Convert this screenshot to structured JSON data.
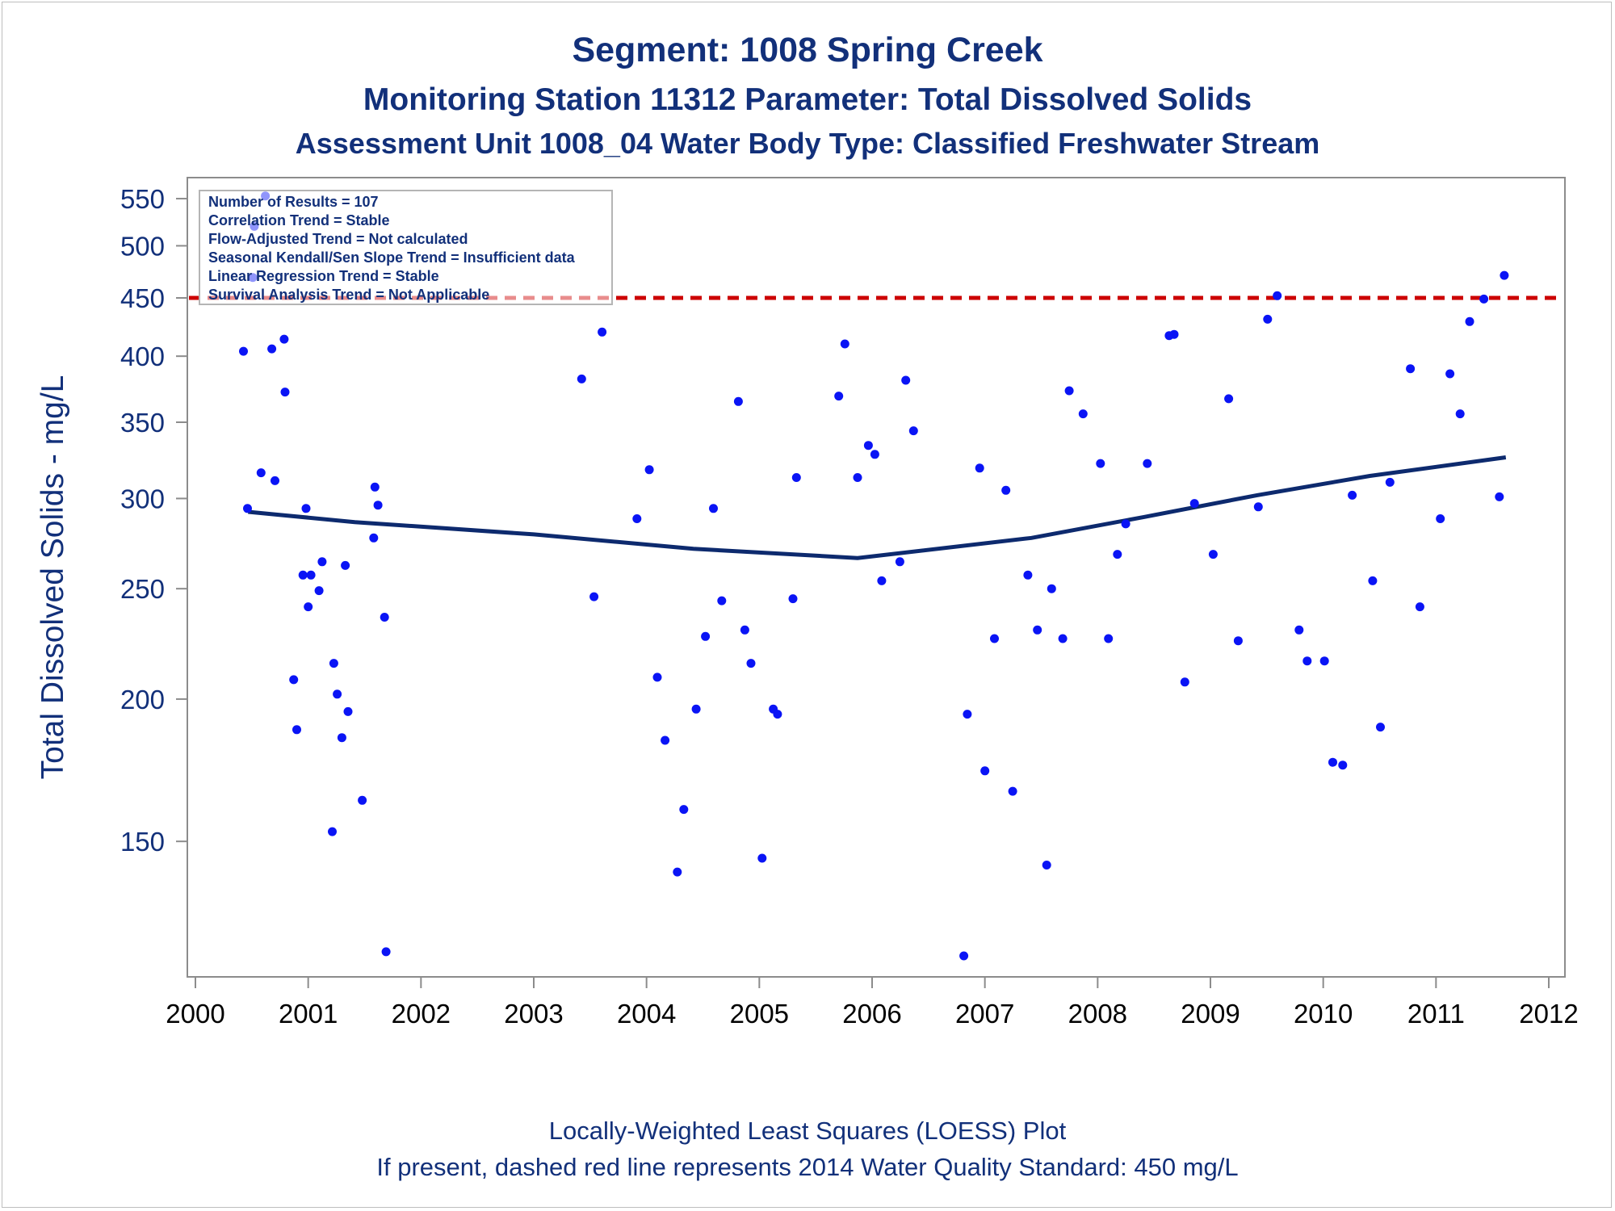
{
  "titles": {
    "line1": "Segment: 1008  Spring Creek",
    "line2": "Monitoring Station 11312 Parameter: Total Dissolved Solids",
    "line3": "Assessment Unit 1008_04   Water Body Type: Classified Freshwater Stream"
  },
  "footnotes": {
    "line1": "Locally-Weighted Least Squares (LOESS) Plot",
    "line2": "If present, dashed red line represents 2014 Water Quality Standard: 450   mg/L"
  },
  "colors": {
    "points": "#0a14f5",
    "loess": "#0d2a6e",
    "standard": "#cc0000",
    "text": "#12307a"
  },
  "chart_data": {
    "type": "scatter",
    "ylabel": "Total Dissolved Solids - mg/L",
    "xlabel": "",
    "y_scale": "log",
    "xlim": [
      "2000-01-01",
      "2012-01-01"
    ],
    "ylim": [
      115,
      560
    ],
    "xticks": [
      "2000",
      "2001",
      "2002",
      "2003",
      "2004",
      "2005",
      "2006",
      "2007",
      "2008",
      "2009",
      "2010",
      "2011",
      "2012"
    ],
    "yticks": [
      150,
      200,
      250,
      300,
      350,
      400,
      450,
      500,
      550
    ],
    "legend": {
      "placement": "top-left",
      "lines": [
        "Number of Results = 107",
        "Correlation Trend = Stable",
        "Flow-Adjusted Trend = Not calculated",
        "Seasonal Kendall/Sen Slope Trend = Insufficient data",
        "Linear Regression Trend = Stable",
        "Survival Analysis Trend = Not Applicable"
      ]
    },
    "standard_line": {
      "value": 450
    },
    "loess": {
      "x": [
        "2000-06-20",
        "2001-06-01",
        "2003-01-01",
        "2004-06-01",
        "2005-11-15",
        "2007-06-01",
        "2008-06-01",
        "2009-06-01",
        "2010-06-01",
        "2011-08-15"
      ],
      "y": [
        292,
        286,
        279,
        271,
        266,
        277,
        289,
        302,
        314,
        326
      ]
    },
    "points": [
      {
        "x": "2000-06-05",
        "y": 404
      },
      {
        "x": "2000-06-18",
        "y": 294
      },
      {
        "x": "2000-07-10",
        "y": 520
      },
      {
        "x": "2000-07-05",
        "y": 469
      },
      {
        "x": "2000-08-01",
        "y": 316
      },
      {
        "x": "2000-08-15",
        "y": 553
      },
      {
        "x": "2000-09-05",
        "y": 406
      },
      {
        "x": "2000-09-15",
        "y": 311
      },
      {
        "x": "2000-10-15",
        "y": 414
      },
      {
        "x": "2000-10-18",
        "y": 372
      },
      {
        "x": "2000-11-15",
        "y": 208
      },
      {
        "x": "2000-11-25",
        "y": 188
      },
      {
        "x": "2000-12-15",
        "y": 257
      },
      {
        "x": "2000-12-25",
        "y": 294
      },
      {
        "x": "2001-01-01",
        "y": 241
      },
      {
        "x": "2001-01-10",
        "y": 257
      },
      {
        "x": "2001-02-05",
        "y": 249
      },
      {
        "x": "2001-02-15",
        "y": 264
      },
      {
        "x": "2001-03-20",
        "y": 153
      },
      {
        "x": "2001-03-25",
        "y": 215
      },
      {
        "x": "2001-04-05",
        "y": 202
      },
      {
        "x": "2001-04-20",
        "y": 185
      },
      {
        "x": "2001-05-01",
        "y": 262
      },
      {
        "x": "2001-05-10",
        "y": 195
      },
      {
        "x": "2001-06-25",
        "y": 163
      },
      {
        "x": "2001-08-01",
        "y": 277
      },
      {
        "x": "2001-08-05",
        "y": 307
      },
      {
        "x": "2001-08-15",
        "y": 296
      },
      {
        "x": "2001-09-05",
        "y": 236
      },
      {
        "x": "2001-09-10",
        "y": 120
      },
      {
        "x": "2003-06-05",
        "y": 382
      },
      {
        "x": "2003-07-15",
        "y": 246
      },
      {
        "x": "2003-08-10",
        "y": 420
      },
      {
        "x": "2003-12-01",
        "y": 288
      },
      {
        "x": "2004-01-10",
        "y": 318
      },
      {
        "x": "2004-02-05",
        "y": 209
      },
      {
        "x": "2004-03-01",
        "y": 184
      },
      {
        "x": "2004-04-10",
        "y": 141
      },
      {
        "x": "2004-05-01",
        "y": 160
      },
      {
        "x": "2004-06-10",
        "y": 196
      },
      {
        "x": "2004-07-10",
        "y": 227
      },
      {
        "x": "2004-08-05",
        "y": 294
      },
      {
        "x": "2004-09-01",
        "y": 244
      },
      {
        "x": "2004-10-25",
        "y": 365
      },
      {
        "x": "2004-11-15",
        "y": 230
      },
      {
        "x": "2004-12-05",
        "y": 215
      },
      {
        "x": "2005-01-10",
        "y": 145
      },
      {
        "x": "2005-02-15",
        "y": 196
      },
      {
        "x": "2005-03-01",
        "y": 194
      },
      {
        "x": "2005-04-20",
        "y": 245
      },
      {
        "x": "2005-05-01",
        "y": 313
      },
      {
        "x": "2005-09-15",
        "y": 369
      },
      {
        "x": "2005-10-05",
        "y": 410
      },
      {
        "x": "2005-11-15",
        "y": 313
      },
      {
        "x": "2005-12-20",
        "y": 334
      },
      {
        "x": "2006-01-10",
        "y": 328
      },
      {
        "x": "2006-02-01",
        "y": 254
      },
      {
        "x": "2006-04-01",
        "y": 264
      },
      {
        "x": "2006-04-20",
        "y": 381
      },
      {
        "x": "2006-05-15",
        "y": 344
      },
      {
        "x": "2006-10-25",
        "y": 119
      },
      {
        "x": "2006-11-05",
        "y": 194
      },
      {
        "x": "2006-12-15",
        "y": 319
      },
      {
        "x": "2007-01-01",
        "y": 173
      },
      {
        "x": "2007-02-01",
        "y": 226
      },
      {
        "x": "2007-03-10",
        "y": 305
      },
      {
        "x": "2007-04-01",
        "y": 166
      },
      {
        "x": "2007-05-20",
        "y": 257
      },
      {
        "x": "2007-06-20",
        "y": 230
      },
      {
        "x": "2007-07-20",
        "y": 143
      },
      {
        "x": "2007-08-05",
        "y": 250
      },
      {
        "x": "2007-09-10",
        "y": 226
      },
      {
        "x": "2007-10-01",
        "y": 373
      },
      {
        "x": "2007-11-15",
        "y": 356
      },
      {
        "x": "2008-01-10",
        "y": 322
      },
      {
        "x": "2008-02-05",
        "y": 226
      },
      {
        "x": "2008-03-05",
        "y": 268
      },
      {
        "x": "2008-04-01",
        "y": 285
      },
      {
        "x": "2008-06-10",
        "y": 322
      },
      {
        "x": "2008-08-20",
        "y": 417
      },
      {
        "x": "2008-09-05",
        "y": 418
      },
      {
        "x": "2008-10-10",
        "y": 207
      },
      {
        "x": "2008-11-10",
        "y": 297
      },
      {
        "x": "2009-01-10",
        "y": 268
      },
      {
        "x": "2009-03-01",
        "y": 367
      },
      {
        "x": "2009-04-01",
        "y": 225
      },
      {
        "x": "2009-06-05",
        "y": 295
      },
      {
        "x": "2009-07-05",
        "y": 431
      },
      {
        "x": "2009-08-05",
        "y": 452
      },
      {
        "x": "2009-10-15",
        "y": 230
      },
      {
        "x": "2009-11-10",
        "y": 216
      },
      {
        "x": "2010-01-05",
        "y": 216
      },
      {
        "x": "2010-02-01",
        "y": 176
      },
      {
        "x": "2010-03-05",
        "y": 175
      },
      {
        "x": "2010-04-05",
        "y": 302
      },
      {
        "x": "2010-06-10",
        "y": 254
      },
      {
        "x": "2010-07-05",
        "y": 189
      },
      {
        "x": "2010-08-05",
        "y": 310
      },
      {
        "x": "2010-10-10",
        "y": 390
      },
      {
        "x": "2010-11-10",
        "y": 241
      },
      {
        "x": "2011-01-15",
        "y": 288
      },
      {
        "x": "2011-02-15",
        "y": 386
      },
      {
        "x": "2011-03-20",
        "y": 356
      },
      {
        "x": "2011-04-20",
        "y": 429
      },
      {
        "x": "2011-06-05",
        "y": 449
      },
      {
        "x": "2011-07-25",
        "y": 301
      },
      {
        "x": "2011-08-10",
        "y": 471
      }
    ]
  }
}
